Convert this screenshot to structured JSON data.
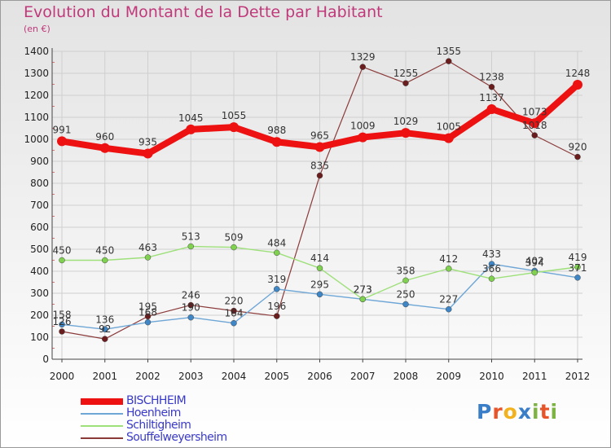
{
  "header": {
    "title": "Evolution du Montant de la Dette par Habitant",
    "subtitle": "(en €)"
  },
  "logo": {
    "text": "Proxiti",
    "colors": [
      "#3a7ec8",
      "#e8542a",
      "#f2b21d",
      "#3a7ec8",
      "#7cb342",
      "#e8542a",
      "#7cb342"
    ]
  },
  "chart_data": {
    "type": "line",
    "x": [
      "2000",
      "2001",
      "2002",
      "2003",
      "2004",
      "2005",
      "2006",
      "2007",
      "2008",
      "2009",
      "2010",
      "2011",
      "2012"
    ],
    "ylim": [
      0,
      1400
    ],
    "yticks": [
      0,
      100,
      200,
      300,
      400,
      500,
      600,
      700,
      800,
      900,
      1000,
      1100,
      1200,
      1300,
      1400
    ],
    "grid": true,
    "legend_position": "bottom-left",
    "series": [
      {
        "name": "BISCHHEIM",
        "color": "#ee1111",
        "values": [
          991,
          960,
          935,
          1045,
          1055,
          988,
          965,
          1009,
          1029,
          1005,
          1137,
          1073,
          1248
        ]
      },
      {
        "name": "Hoenheim",
        "color": "#6ea6d6",
        "values": [
          158,
          136,
          168,
          190,
          164,
          319,
          295,
          273,
          250,
          227,
          433,
          402,
          371
        ]
      },
      {
        "name": "Schiltigheim",
        "color": "#9ee07a",
        "values": [
          450,
          450,
          463,
          513,
          509,
          484,
          414,
          273,
          358,
          412,
          366,
          394,
          419
        ]
      },
      {
        "name": "Souffelweyersheim",
        "color": "#8b3a3a",
        "values": [
          126,
          92,
          195,
          246,
          220,
          196,
          835,
          1329,
          1255,
          1355,
          1238,
          1018,
          920
        ]
      }
    ],
    "labels": [
      {
        "series": 0,
        "values": [
          "991",
          "960",
          "935",
          "1045",
          "1055",
          "988",
          "965",
          "1009",
          "1029",
          "1005",
          "1137",
          "1073",
          "1248"
        ]
      },
      {
        "series": 1,
        "values": [
          "158",
          "136",
          "168",
          "190",
          "164",
          "319",
          "295",
          "273",
          "250",
          "227",
          "433",
          "402",
          "371"
        ]
      },
      {
        "series": 2,
        "values": [
          "450",
          "450",
          "463",
          "513",
          "509",
          "484",
          "414",
          "273",
          "358",
          "412",
          "366",
          "394",
          "419"
        ]
      },
      {
        "series": 3,
        "values": [
          "126",
          "92",
          "195",
          "246",
          "220",
          "196",
          "835",
          "1329",
          "1255",
          "1355",
          "1238",
          "1018",
          "920"
        ]
      }
    ]
  }
}
